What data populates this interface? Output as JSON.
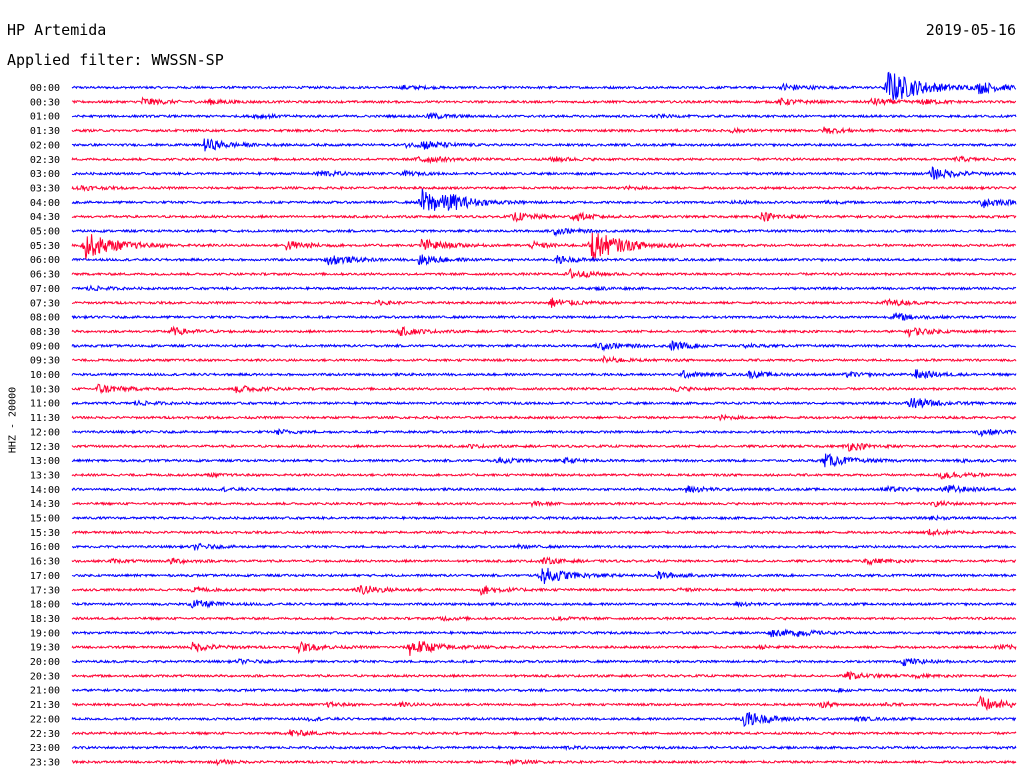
{
  "header": {
    "station": "HP Artemida",
    "filter": "Applied filter: WWSSN-SP",
    "date": "2019-05-16"
  },
  "chart_data": {
    "type": "line",
    "title": "HP Artemida",
    "subtitle": "Applied filter: WWSSN-SP",
    "date": "2019-05-16",
    "ylabel": "HHZ - 20000",
    "trace_colors": [
      "#0000ff",
      "#ff0033"
    ],
    "grid": false,
    "legend": "none",
    "row_labels": [
      "00:00",
      "00:30",
      "01:00",
      "01:30",
      "02:00",
      "02:30",
      "03:00",
      "03:30",
      "04:00",
      "04:30",
      "05:00",
      "05:30",
      "06:00",
      "06:30",
      "07:00",
      "07:30",
      "08:00",
      "08:30",
      "09:00",
      "09:30",
      "10:00",
      "10:30",
      "11:00",
      "11:30",
      "12:00",
      "12:30",
      "13:00",
      "13:30",
      "14:00",
      "14:30",
      "15:00",
      "15:30",
      "16:00",
      "16:30",
      "17:00",
      "17:30",
      "18:00",
      "18:30",
      "19:00",
      "19:30",
      "20:00",
      "20:30",
      "21:00",
      "21:30",
      "22:00",
      "22:30",
      "23:00",
      "23:30"
    ],
    "row_minutes": 30,
    "events": [
      {
        "row": 0,
        "min": 10.5,
        "amp": 0.45
      },
      {
        "row": 0,
        "min": 22.6,
        "amp": 0.9
      },
      {
        "row": 0,
        "min": 25.9,
        "amp": 4.0
      },
      {
        "row": 0,
        "min": 28.8,
        "amp": 1.2
      },
      {
        "row": 1,
        "min": 2.2,
        "amp": 0.9
      },
      {
        "row": 1,
        "min": 4.3,
        "amp": 0.6
      },
      {
        "row": 1,
        "min": 22.5,
        "amp": 0.7
      },
      {
        "row": 1,
        "min": 25.4,
        "amp": 0.8
      },
      {
        "row": 1,
        "min": 27.0,
        "amp": 0.6
      },
      {
        "row": 2,
        "min": 5.8,
        "amp": 0.5
      },
      {
        "row": 2,
        "min": 11.3,
        "amp": 0.7
      },
      {
        "row": 2,
        "min": 18.5,
        "amp": 0.3
      },
      {
        "row": 3,
        "min": 20.9,
        "amp": 0.4
      },
      {
        "row": 3,
        "min": 23.9,
        "amp": 0.7
      },
      {
        "row": 4,
        "min": 4.2,
        "amp": 1.4
      },
      {
        "row": 4,
        "min": 10.6,
        "amp": 0.4
      },
      {
        "row": 4,
        "min": 11.1,
        "amp": 1.0
      },
      {
        "row": 5,
        "min": 11.0,
        "amp": 1.0
      },
      {
        "row": 5,
        "min": 15.2,
        "amp": 0.6
      },
      {
        "row": 5,
        "min": 28.1,
        "amp": 0.5
      },
      {
        "row": 6,
        "min": 7.8,
        "amp": 0.8
      },
      {
        "row": 6,
        "min": 10.5,
        "amp": 0.45
      },
      {
        "row": 6,
        "min": 27.3,
        "amp": 1.4
      },
      {
        "row": 7,
        "min": 0.2,
        "amp": 0.6
      },
      {
        "row": 7,
        "min": 17.6,
        "amp": 0.3
      },
      {
        "row": 8,
        "min": 11.1,
        "amp": 3.0
      },
      {
        "row": 8,
        "min": 11.9,
        "amp": 1.1
      },
      {
        "row": 8,
        "min": 21.0,
        "amp": 0.3
      },
      {
        "row": 8,
        "min": 23.9,
        "amp": 0.3
      },
      {
        "row": 8,
        "min": 28.9,
        "amp": 1.3
      },
      {
        "row": 9,
        "min": 14.0,
        "amp": 1.0
      },
      {
        "row": 9,
        "min": 15.9,
        "amp": 0.9
      },
      {
        "row": 9,
        "min": 21.9,
        "amp": 1.0
      },
      {
        "row": 10,
        "min": 15.3,
        "amp": 0.8
      },
      {
        "row": 11,
        "min": 0.4,
        "amp": 3.0
      },
      {
        "row": 11,
        "min": 6.8,
        "amp": 1.1
      },
      {
        "row": 11,
        "min": 11.1,
        "amp": 1.4
      },
      {
        "row": 11,
        "min": 14.6,
        "amp": 0.7
      },
      {
        "row": 11,
        "min": 16.5,
        "amp": 3.5
      },
      {
        "row": 12,
        "min": 8.1,
        "amp": 1.3
      },
      {
        "row": 12,
        "min": 11.0,
        "amp": 1.2
      },
      {
        "row": 12,
        "min": 15.4,
        "amp": 0.8
      },
      {
        "row": 13,
        "min": 15.8,
        "amp": 1.1
      },
      {
        "row": 14,
        "min": 0.5,
        "amp": 0.5
      },
      {
        "row": 14,
        "min": 16.7,
        "amp": 0.3
      },
      {
        "row": 15,
        "min": 9.7,
        "amp": 0.4
      },
      {
        "row": 15,
        "min": 15.2,
        "amp": 1.1
      },
      {
        "row": 15,
        "min": 25.8,
        "amp": 0.8
      },
      {
        "row": 16,
        "min": 26.1,
        "amp": 0.9
      },
      {
        "row": 17,
        "min": 3.1,
        "amp": 0.9
      },
      {
        "row": 17,
        "min": 10.4,
        "amp": 0.9
      },
      {
        "row": 17,
        "min": 26.6,
        "amp": 1.0
      },
      {
        "row": 18,
        "min": 16.7,
        "amp": 1.0
      },
      {
        "row": 18,
        "min": 19.0,
        "amp": 1.0
      },
      {
        "row": 18,
        "min": 21.4,
        "amp": 0.3
      },
      {
        "row": 19,
        "min": 16.9,
        "amp": 0.7
      },
      {
        "row": 20,
        "min": 19.4,
        "amp": 0.7
      },
      {
        "row": 20,
        "min": 21.5,
        "amp": 0.7
      },
      {
        "row": 20,
        "min": 24.6,
        "amp": 0.5
      },
      {
        "row": 20,
        "min": 26.8,
        "amp": 1.0
      },
      {
        "row": 21,
        "min": 0.8,
        "amp": 1.1
      },
      {
        "row": 21,
        "min": 5.2,
        "amp": 0.9
      },
      {
        "row": 21,
        "min": 19.1,
        "amp": 0.5
      },
      {
        "row": 22,
        "min": 2.0,
        "amp": 0.5
      },
      {
        "row": 22,
        "min": 26.6,
        "amp": 1.4
      },
      {
        "row": 23,
        "min": 20.6,
        "amp": 0.4
      },
      {
        "row": 24,
        "min": 6.5,
        "amp": 0.5
      },
      {
        "row": 24,
        "min": 28.8,
        "amp": 0.8
      },
      {
        "row": 25,
        "min": 12.6,
        "amp": 0.3
      },
      {
        "row": 25,
        "min": 24.6,
        "amp": 1.0
      },
      {
        "row": 26,
        "min": 13.5,
        "amp": 0.7
      },
      {
        "row": 26,
        "min": 15.6,
        "amp": 0.5
      },
      {
        "row": 26,
        "min": 23.9,
        "amp": 1.5
      },
      {
        "row": 26,
        "min": 28.2,
        "amp": 0.3
      },
      {
        "row": 27,
        "min": 4.3,
        "amp": 0.3
      },
      {
        "row": 27,
        "min": 27.6,
        "amp": 1.0
      },
      {
        "row": 28,
        "min": 4.8,
        "amp": 0.3
      },
      {
        "row": 28,
        "min": 19.5,
        "amp": 0.8
      },
      {
        "row": 28,
        "min": 25.8,
        "amp": 0.6
      },
      {
        "row": 28,
        "min": 27.7,
        "amp": 1.0
      },
      {
        "row": 29,
        "min": 14.6,
        "amp": 0.4
      },
      {
        "row": 29,
        "min": 27.4,
        "amp": 0.5
      },
      {
        "row": 30,
        "min": 27.3,
        "amp": 0.3
      },
      {
        "row": 31,
        "min": 27.2,
        "amp": 0.6
      },
      {
        "row": 32,
        "min": 3.9,
        "amp": 0.6
      },
      {
        "row": 32,
        "min": 14.2,
        "amp": 0.3
      },
      {
        "row": 33,
        "min": 1.2,
        "amp": 0.4
      },
      {
        "row": 33,
        "min": 3.1,
        "amp": 0.6
      },
      {
        "row": 33,
        "min": 14.9,
        "amp": 0.7
      },
      {
        "row": 33,
        "min": 25.2,
        "amp": 0.7
      },
      {
        "row": 34,
        "min": 14.9,
        "amp": 2.0
      },
      {
        "row": 34,
        "min": 18.6,
        "amp": 0.8
      },
      {
        "row": 35,
        "min": 3.8,
        "amp": 0.5
      },
      {
        "row": 35,
        "min": 9.1,
        "amp": 1.2
      },
      {
        "row": 35,
        "min": 13.0,
        "amp": 1.0
      },
      {
        "row": 35,
        "min": 19.3,
        "amp": 0.3
      },
      {
        "row": 36,
        "min": 3.8,
        "amp": 1.0
      },
      {
        "row": 36,
        "min": 21.1,
        "amp": 0.4
      },
      {
        "row": 37,
        "min": 11.7,
        "amp": 0.4
      },
      {
        "row": 37,
        "min": 15.3,
        "amp": 0.5
      },
      {
        "row": 38,
        "min": 22.2,
        "amp": 0.8
      },
      {
        "row": 38,
        "min": 23.0,
        "amp": 0.6
      },
      {
        "row": 39,
        "min": 3.8,
        "amp": 1.0
      },
      {
        "row": 39,
        "min": 7.2,
        "amp": 1.0
      },
      {
        "row": 39,
        "min": 10.7,
        "amp": 2.0
      },
      {
        "row": 39,
        "min": 21.8,
        "amp": 0.4
      },
      {
        "row": 39,
        "min": 29.4,
        "amp": 0.6
      },
      {
        "row": 40,
        "min": 5.3,
        "amp": 0.4
      },
      {
        "row": 40,
        "min": 26.4,
        "amp": 0.8
      },
      {
        "row": 41,
        "min": 24.6,
        "amp": 0.8
      },
      {
        "row": 41,
        "min": 26.8,
        "amp": 0.3
      },
      {
        "row": 42,
        "min": 24.3,
        "amp": 0.3
      },
      {
        "row": 43,
        "min": 8.1,
        "amp": 0.4
      },
      {
        "row": 43,
        "min": 10.4,
        "amp": 0.4
      },
      {
        "row": 43,
        "min": 23.8,
        "amp": 0.5
      },
      {
        "row": 43,
        "min": 25.7,
        "amp": 0.3
      },
      {
        "row": 43,
        "min": 28.8,
        "amp": 1.8
      },
      {
        "row": 44,
        "min": 7.5,
        "amp": 0.3
      },
      {
        "row": 44,
        "min": 21.3,
        "amp": 1.8
      },
      {
        "row": 44,
        "min": 24.9,
        "amp": 0.4
      },
      {
        "row": 45,
        "min": 6.9,
        "amp": 0.8
      },
      {
        "row": 46,
        "min": 15.6,
        "amp": 0.3
      },
      {
        "row": 47,
        "min": 4.6,
        "amp": 0.4
      },
      {
        "row": 47,
        "min": 13.8,
        "amp": 0.5
      }
    ]
  }
}
